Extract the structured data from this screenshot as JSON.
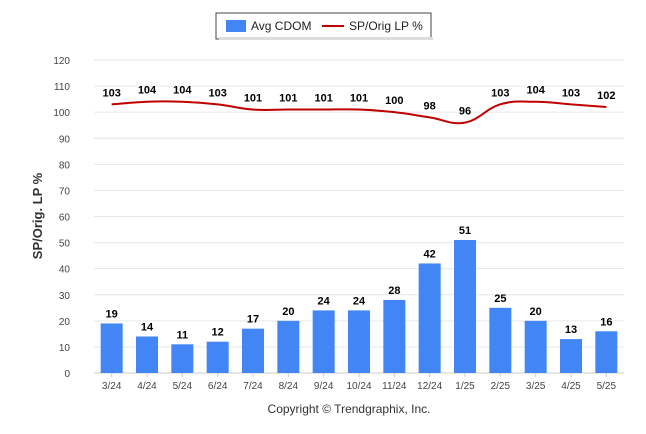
{
  "chart_data": {
    "type": "bar",
    "categories": [
      "3/24",
      "4/24",
      "5/24",
      "6/24",
      "7/24",
      "8/24",
      "9/24",
      "10/24",
      "11/24",
      "12/24",
      "1/25",
      "2/25",
      "3/25",
      "4/25",
      "5/25"
    ],
    "series": [
      {
        "name": "Avg CDOM",
        "type": "bar",
        "color": "#4285f4",
        "values": [
          19,
          14,
          11,
          12,
          17,
          20,
          24,
          24,
          28,
          42,
          51,
          25,
          20,
          13,
          16
        ]
      },
      {
        "name": "SP/Orig LP %",
        "type": "line",
        "color": "#c00000",
        "values": [
          103,
          104,
          104,
          103,
          101,
          101,
          101,
          101,
          100,
          98,
          96,
          103,
          104,
          103,
          102
        ]
      }
    ],
    "ylabel": "SP/Orig. LP %",
    "ylim": [
      0,
      120
    ],
    "yticks": [
      0,
      10,
      20,
      30,
      40,
      50,
      60,
      70,
      80,
      90,
      100,
      110,
      120
    ],
    "grid": true,
    "legend_position": "top-center"
  },
  "footer": {
    "credit": "Copyright © Trendgraphix, Inc."
  }
}
